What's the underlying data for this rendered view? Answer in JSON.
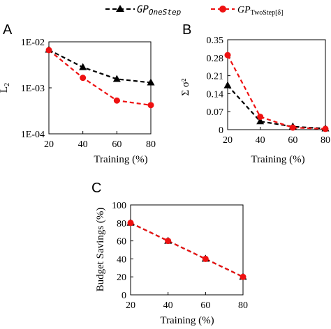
{
  "legend": {
    "series_a": {
      "prefix": "GP",
      "subscript": "OneStep"
    },
    "series_b": {
      "prefix": "GP",
      "subscript": "TwoStep[δ]"
    }
  },
  "chart_data": [
    {
      "panel_letter": "A",
      "type": "line",
      "xlabel": "Training (%)",
      "ylabel": "L",
      "ylabel_sub": "2",
      "xticks": [
        "20",
        "40",
        "60",
        "80"
      ],
      "y_scale": "log",
      "ylim": [
        0.0001,
        0.01
      ],
      "yticks": [
        {
          "value": 0.01,
          "label": "1E-02"
        },
        {
          "value": 0.001,
          "label": "1E-03"
        },
        {
          "value": 0.0001,
          "label": "1E-04"
        }
      ],
      "x": [
        20,
        40,
        60,
        80
      ],
      "xlim": [
        20,
        80
      ],
      "series": [
        {
          "key": "onestep",
          "color": "#000000",
          "marker": "triangle",
          "values": [
            0.0067,
            0.0028,
            0.00155,
            0.0013
          ]
        },
        {
          "key": "twostep",
          "color": "#ee1111",
          "marker": "circle",
          "values": [
            0.0066,
            0.00165,
            0.00053,
            0.00042
          ]
        }
      ]
    },
    {
      "panel_letter": "B",
      "type": "line",
      "xlabel": "Training (%)",
      "ylabel": "Σ σ²",
      "xticks": [
        "20",
        "40",
        "60",
        "80"
      ],
      "y_scale": "linear",
      "ylim": [
        0,
        0.35
      ],
      "yticks": [
        {
          "value": 0,
          "label": "0"
        },
        {
          "value": 0.07,
          "label": "0.07"
        },
        {
          "value": 0.14,
          "label": "0.14"
        },
        {
          "value": 0.21,
          "label": "0.21"
        },
        {
          "value": 0.28,
          "label": "0.28"
        },
        {
          "value": 0.35,
          "label": "0.35"
        }
      ],
      "x": [
        20,
        40,
        60,
        80
      ],
      "xlim": [
        20,
        80
      ],
      "series": [
        {
          "key": "onestep",
          "color": "#000000",
          "marker": "triangle",
          "values": [
            0.172,
            0.032,
            0.012,
            0.004
          ]
        },
        {
          "key": "twostep",
          "color": "#ee1111",
          "marker": "circle",
          "values": [
            0.29,
            0.05,
            0.008,
            0.003
          ]
        }
      ]
    },
    {
      "panel_letter": "C",
      "type": "line",
      "xlabel": "Training (%)",
      "ylabel": "Budget Savings (%)",
      "xticks": [
        "20",
        "40",
        "60",
        "80"
      ],
      "y_scale": "linear",
      "ylim": [
        0,
        100
      ],
      "yticks": [
        {
          "value": 0,
          "label": "0"
        },
        {
          "value": 20,
          "label": "20"
        },
        {
          "value": 40,
          "label": "40"
        },
        {
          "value": 60,
          "label": "60"
        },
        {
          "value": 80,
          "label": "80"
        },
        {
          "value": 100,
          "label": "100"
        }
      ],
      "x": [
        20,
        40,
        60,
        80
      ],
      "xlim": [
        20,
        80
      ],
      "series": [
        {
          "key": "onestep",
          "color": "#000000",
          "marker": "triangle",
          "values": [
            80,
            60,
            40,
            20
          ]
        },
        {
          "key": "twostep",
          "color": "#ee1111",
          "marker": "circle",
          "values": [
            80,
            60,
            40,
            20
          ]
        }
      ]
    }
  ]
}
